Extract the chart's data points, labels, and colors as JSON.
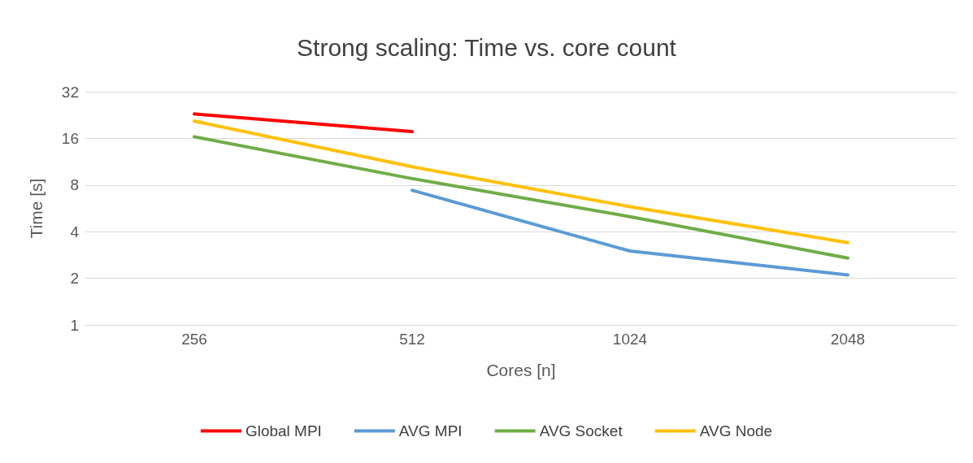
{
  "chart_data": {
    "type": "line",
    "title": "Strong scaling: Time vs. core count",
    "xlabel": "Cores [n]",
    "ylabel": "Time [s]",
    "categories": [
      "256",
      "512",
      "1024",
      "2048"
    ],
    "series": [
      {
        "name": "Global MPI",
        "color": "#ff0000",
        "values": [
          23,
          17.7,
          null,
          null
        ]
      },
      {
        "name": "AVG MPI",
        "color": "#5b9bd5",
        "values": [
          null,
          7.4,
          3.0,
          2.1
        ]
      },
      {
        "name": "AVG Socket",
        "color": "#70ad47",
        "values": [
          16.4,
          8.8,
          5.0,
          2.7
        ]
      },
      {
        "name": "AVG Node",
        "color": "#ffc000",
        "values": [
          20.7,
          10.5,
          5.8,
          3.4
        ]
      }
    ],
    "log": "y",
    "ylim": [
      1,
      32
    ],
    "yticks": [
      1,
      2,
      4,
      8,
      16,
      32
    ],
    "grid": "y",
    "legend": "bottom",
    "marker": "none",
    "line_style": "solid"
  }
}
